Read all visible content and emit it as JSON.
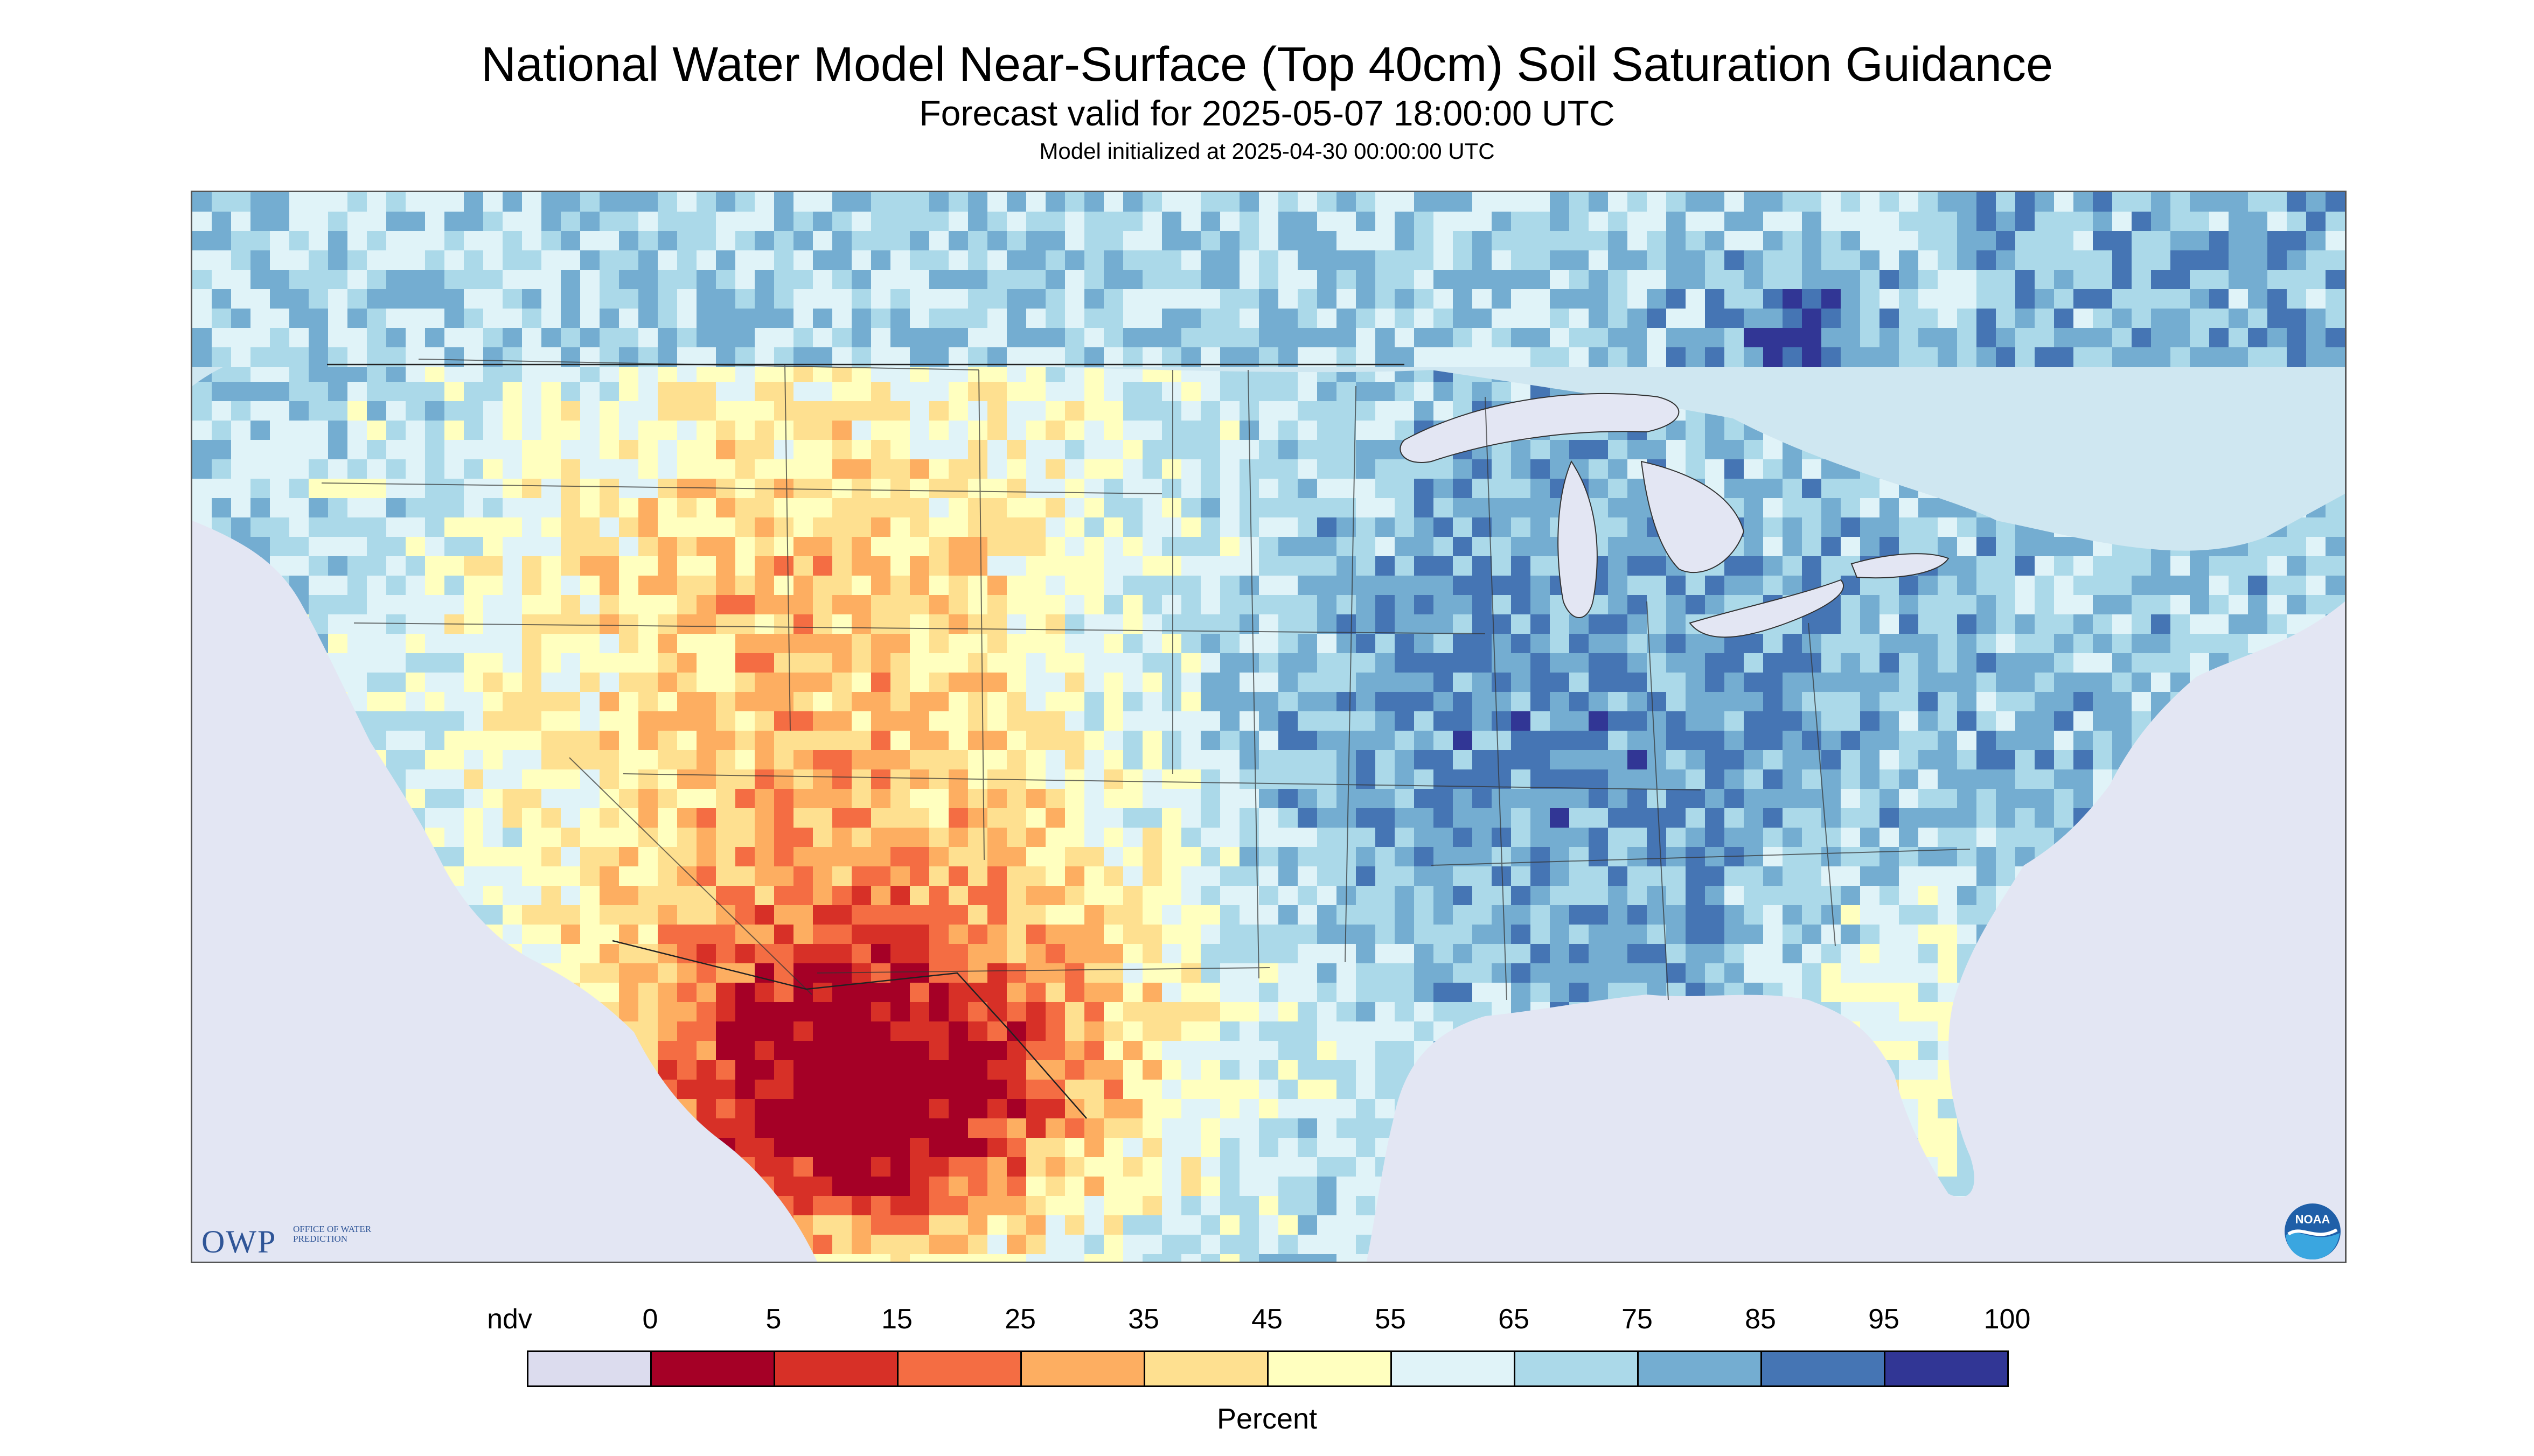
{
  "title": "National Water Model Near-Surface (Top 40cm) Soil Saturation Guidance",
  "subtitle": "Forecast valid for 2025-05-07 18:00:00 UTC",
  "init_line": "Model initialized at 2025-04-30 00:00:00 UTC",
  "logo_owp": {
    "big": "OWP",
    "small": "OFFICE OF WATER PREDICTION"
  },
  "logo_noaa": {
    "text": "NOAA"
  },
  "colorbar": {
    "units": "Percent",
    "labels": [
      "ndv",
      "0",
      "5",
      "15",
      "25",
      "35",
      "45",
      "55",
      "65",
      "75",
      "85",
      "95",
      "100"
    ],
    "colors": [
      "#dcdcee",
      "#a50026",
      "#d73027",
      "#f46d43",
      "#fdae61",
      "#fee090",
      "#ffffbf",
      "#e0f3f8",
      "#abd9e9",
      "#74add1",
      "#4575b4",
      "#313695"
    ]
  },
  "chart_data": {
    "type": "heatmap",
    "title": "National Water Model Near-Surface (Top 40cm) Soil Saturation Guidance",
    "subtitle": "Forecast valid for 2025-05-07 18:00:00 UTC",
    "legend_title": "Percent",
    "legend_placement": "bottom",
    "color_bins": [
      {
        "label": "ndv",
        "color": "#dcdcee"
      },
      {
        "range": [
          0,
          5
        ],
        "color": "#a50026"
      },
      {
        "range": [
          5,
          15
        ],
        "color": "#d73027"
      },
      {
        "range": [
          15,
          25
        ],
        "color": "#f46d43"
      },
      {
        "range": [
          25,
          35
        ],
        "color": "#fdae61"
      },
      {
        "range": [
          35,
          45
        ],
        "color": "#fee090"
      },
      {
        "range": [
          45,
          55
        ],
        "color": "#ffffbf"
      },
      {
        "range": [
          55,
          65
        ],
        "color": "#e0f3f8"
      },
      {
        "range": [
          65,
          75
        ],
        "color": "#abd9e9"
      },
      {
        "range": [
          75,
          85
        ],
        "color": "#74add1"
      },
      {
        "range": [
          85,
          95
        ],
        "color": "#4575b4"
      },
      {
        "range": [
          95,
          100
        ],
        "color": "#313695"
      }
    ]
  }
}
